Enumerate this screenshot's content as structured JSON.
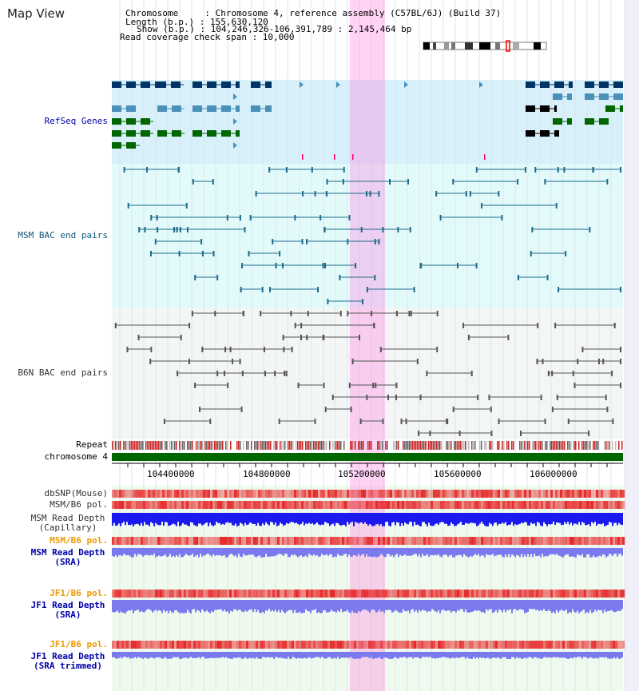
{
  "header": {
    "title": "Map View",
    "info_lines": [
      "Chromosome     : Chromosome 4, reference assembly (C57BL/6J) (Build 37)",
      "Length (b.p.) : 155,630,120",
      "Show (b.p.) : 104,246,326-106,391,789 : 2,145,464 bp",
      "Read coverage check span : 10,000"
    ]
  },
  "tracks": {
    "refseq": "RefSeq Genes",
    "msm_bac": "MSM BAC end pairs",
    "b6n_bac": "B6N BAC end pairs",
    "repeat": "Repeat",
    "chromosome": "chromosome 4",
    "dbsnp": "dbSNP(Mouse)",
    "msm_b6_pol_1": "MSM/B6 pol.",
    "msm_depth_cap_1": "MSM Read Depth",
    "msm_depth_cap_2": "(Capillary)",
    "msm_b6_pol_2": "MSM/B6 pol.",
    "msm_depth_sra_1": "MSM Read Depth",
    "msm_depth_sra_2": "(SRA)",
    "jf1_pol_1": "JF1/B6 pol.",
    "jf1_depth_1": "JF1 Read Depth",
    "jf1_depth_2": "(SRA)",
    "jf1_pol_2": "JF1/B6 pol.",
    "jf1_trim_1": "JF1 Read Depth",
    "jf1_trim_2": "(SRA trimmed)"
  },
  "axis": {
    "ticks": [
      "104400000",
      "104800000",
      "105200000",
      "105600000",
      "106000000"
    ]
  },
  "colors": {
    "refseq_dark": "#003366",
    "refseq_mid": "#4a90b8",
    "refseq_green": "#006600",
    "msm_line": "#1f6a8a",
    "b6n_line": "#555555",
    "repeat_red": "#cc2222",
    "chrom_green": "#006600",
    "highlight": "#ff80e0",
    "depth_blue": "#1a1aee",
    "depth_light": "#7a7aee",
    "pol_orange": "#ee9900",
    "label_blue": "#0000aa",
    "label_teal": "#115577"
  }
}
